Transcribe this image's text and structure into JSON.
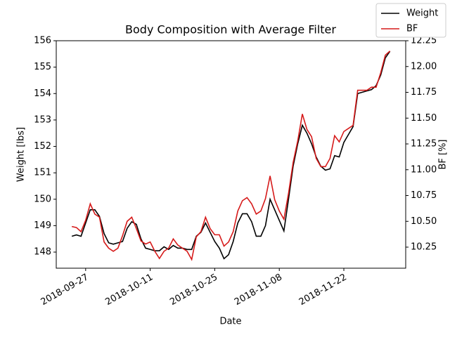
{
  "chart_data": {
    "type": "line",
    "title": "Body Composition with Average Filter",
    "xlabel": "Date",
    "ylabel": "Weight [lbs]",
    "y2label": "BF [%]",
    "x": [
      "2018-09-24",
      "2018-09-25",
      "2018-09-26",
      "2018-09-27",
      "2018-09-28",
      "2018-09-29",
      "2018-09-30",
      "2018-10-01",
      "2018-10-02",
      "2018-10-03",
      "2018-10-04",
      "2018-10-05",
      "2018-10-06",
      "2018-10-07",
      "2018-10-08",
      "2018-10-09",
      "2018-10-10",
      "2018-10-11",
      "2018-10-12",
      "2018-10-13",
      "2018-10-14",
      "2018-10-15",
      "2018-10-16",
      "2018-10-17",
      "2018-10-18",
      "2018-10-19",
      "2018-10-20",
      "2018-10-21",
      "2018-10-22",
      "2018-10-23",
      "2018-10-24",
      "2018-10-25",
      "2018-10-26",
      "2018-10-27",
      "2018-10-28",
      "2018-10-29",
      "2018-10-30",
      "2018-10-31",
      "2018-11-01",
      "2018-11-02",
      "2018-11-03",
      "2018-11-04",
      "2018-11-05",
      "2018-11-06",
      "2018-11-07",
      "2018-11-08",
      "2018-11-09",
      "2018-11-10",
      "2018-11-11",
      "2018-11-12",
      "2018-11-13",
      "2018-11-14",
      "2018-11-15",
      "2018-11-16",
      "2018-11-17",
      "2018-11-18",
      "2018-11-19",
      "2018-11-20",
      "2018-11-21",
      "2018-11-22",
      "2018-11-23",
      "2018-11-24",
      "2018-11-25",
      "2018-11-26",
      "2018-11-27",
      "2018-11-28",
      "2018-11-29",
      "2018-11-30",
      "2018-12-01",
      "2018-12-02"
    ],
    "series": [
      {
        "name": "Weight",
        "color": "#000000",
        "values": [
          148.6,
          148.65,
          148.6,
          149.1,
          149.6,
          149.6,
          149.35,
          148.7,
          148.35,
          148.3,
          148.35,
          148.4,
          148.9,
          149.15,
          149.05,
          148.5,
          148.15,
          148.1,
          148.05,
          148.05,
          148.2,
          148.1,
          148.25,
          148.15,
          148.15,
          148.1,
          148.1,
          148.6,
          148.75,
          149.1,
          148.75,
          148.4,
          148.15,
          147.75,
          147.9,
          148.4,
          149.1,
          149.45,
          149.45,
          149.15,
          148.6,
          148.6,
          149.0,
          150.0,
          149.6,
          149.2,
          148.8,
          150.0,
          151.25,
          152.1,
          152.8,
          152.5,
          152.1,
          151.6,
          151.25,
          151.1,
          151.15,
          151.65,
          151.6,
          152.15,
          152.45,
          152.75,
          154.0,
          154.05,
          154.1,
          154.15,
          154.3,
          154.7,
          155.35,
          155.6
        ]
      },
      {
        "name": "BF",
        "color": "#d61a1a",
        "axis": "y2",
        "values": [
          10.45,
          10.44,
          10.4,
          10.51,
          10.67,
          10.57,
          10.54,
          10.3,
          10.24,
          10.21,
          10.24,
          10.36,
          10.5,
          10.54,
          10.43,
          10.31,
          10.28,
          10.3,
          10.21,
          10.14,
          10.21,
          10.24,
          10.33,
          10.27,
          10.24,
          10.21,
          10.13,
          10.35,
          10.4,
          10.54,
          10.43,
          10.37,
          10.37,
          10.26,
          10.3,
          10.4,
          10.6,
          10.7,
          10.73,
          10.67,
          10.57,
          10.6,
          10.72,
          10.94,
          10.71,
          10.6,
          10.52,
          10.77,
          11.07,
          11.28,
          11.54,
          11.39,
          11.32,
          11.11,
          11.03,
          11.03,
          11.11,
          11.33,
          11.27,
          11.37,
          11.4,
          11.43,
          11.77,
          11.77,
          11.77,
          11.8,
          11.8,
          11.94,
          12.11,
          12.15
        ]
      }
    ],
    "xlim": [
      "2018-09-20T15:00:00Z",
      "2018-12-05T10:00:00Z"
    ],
    "xticks": [
      "2018-09-27",
      "2018-10-11",
      "2018-10-25",
      "2018-11-08",
      "2018-11-22"
    ],
    "ylim": [
      147.39,
      156
    ],
    "yticks": [
      148,
      149,
      150,
      151,
      152,
      153,
      154,
      155,
      156
    ],
    "y2lim": [
      10.046,
      12.25
    ],
    "y2ticks": [
      10.25,
      {
        "value": 10.5,
        "label": "10.50"
      },
      10.75,
      {
        "value": 11,
        "label": "11.00"
      },
      11.25,
      {
        "value": 11.5,
        "label": "11.50"
      },
      11.75,
      {
        "value": 12,
        "label": "12.00"
      },
      12.25
    ],
    "legend": "upper right",
    "grid": false
  }
}
